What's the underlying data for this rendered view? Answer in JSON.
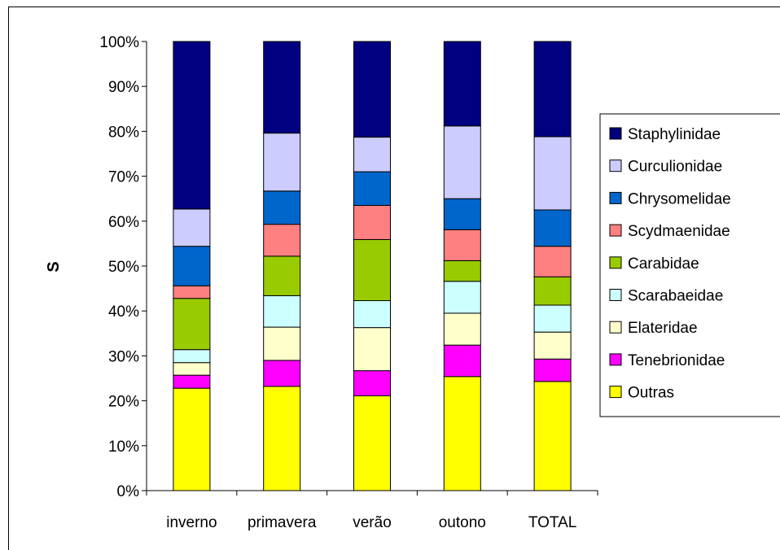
{
  "chart_data": {
    "type": "bar",
    "stacked": "percent",
    "categories": [
      "inverno",
      "primavera",
      "verão",
      "outono",
      "TOTAL"
    ],
    "ylabel": "S",
    "xlabel": "",
    "title": "",
    "ylim": [
      0,
      100
    ],
    "y_ticks": [
      "0%",
      "10%",
      "20%",
      "30%",
      "40%",
      "50%",
      "60%",
      "70%",
      "80%",
      "90%",
      "100%"
    ],
    "grid": false,
    "legend_position": "right",
    "series": [
      {
        "name": "Outras",
        "color": "#FFFF00",
        "values": [
          22.8,
          23.2,
          21.1,
          25.4,
          24.3
        ]
      },
      {
        "name": "Tenebrionidae",
        "color": "#FF00FF",
        "values": [
          2.9,
          5.8,
          5.6,
          7.0,
          5.0
        ]
      },
      {
        "name": "Elateridae",
        "color": "#FFFFCC",
        "values": [
          2.8,
          7.4,
          9.6,
          7.1,
          6.0
        ]
      },
      {
        "name": "Scarabaeidae",
        "color": "#CCFFFF",
        "values": [
          2.9,
          7.0,
          6.0,
          7.1,
          6.0
        ]
      },
      {
        "name": "Carabidae",
        "color": "#99CC00",
        "values": [
          11.4,
          8.8,
          13.6,
          4.6,
          6.3
        ]
      },
      {
        "name": "Scydmaenidae",
        "color": "#FF8080",
        "values": [
          2.8,
          7.1,
          7.6,
          6.9,
          6.8
        ]
      },
      {
        "name": "Chrysomelidae",
        "color": "#0066CC",
        "values": [
          8.8,
          7.4,
          7.5,
          6.9,
          8.1
        ]
      },
      {
        "name": "Curculionidae",
        "color": "#CCCCFF",
        "values": [
          8.3,
          12.9,
          7.7,
          16.2,
          16.3
        ]
      },
      {
        "name": "Staphylinidae",
        "color": "#000080",
        "values": [
          37.3,
          20.4,
          21.3,
          18.8,
          21.2
        ]
      }
    ]
  }
}
